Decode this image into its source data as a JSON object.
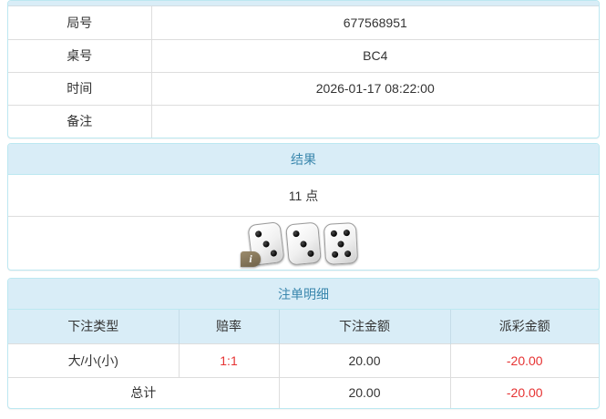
{
  "info_panel": {
    "rows": [
      {
        "label": "局号",
        "value": "677568951"
      },
      {
        "label": "桌号",
        "value": "BC4"
      },
      {
        "label": "时间",
        "value": "2026-01-17 08:22:00"
      },
      {
        "label": "备注",
        "value": ""
      }
    ]
  },
  "result_panel": {
    "title": "结果",
    "points": "11 点",
    "dice": [
      3,
      3,
      5
    ],
    "info_badge": "i"
  },
  "bets_panel": {
    "title": "注单明细",
    "columns": [
      "下注类型",
      "赔率",
      "下注金额",
      "派彩金额"
    ],
    "rows": [
      {
        "bet_type": "大/小(小)",
        "odds": "1:1",
        "bet_amount": "20.00",
        "payout_amount": "-20.00"
      }
    ],
    "total_row": {
      "label": "总计",
      "bet_amount": "20.00",
      "payout_amount": "-20.00"
    }
  },
  "colors": {
    "heading_bg": "#d9edf7",
    "panel_border": "#bce8f1",
    "heading_text": "#3a87ad",
    "negative_red": "#e63333",
    "inner_border": "#dddddd",
    "text": "#333333"
  }
}
